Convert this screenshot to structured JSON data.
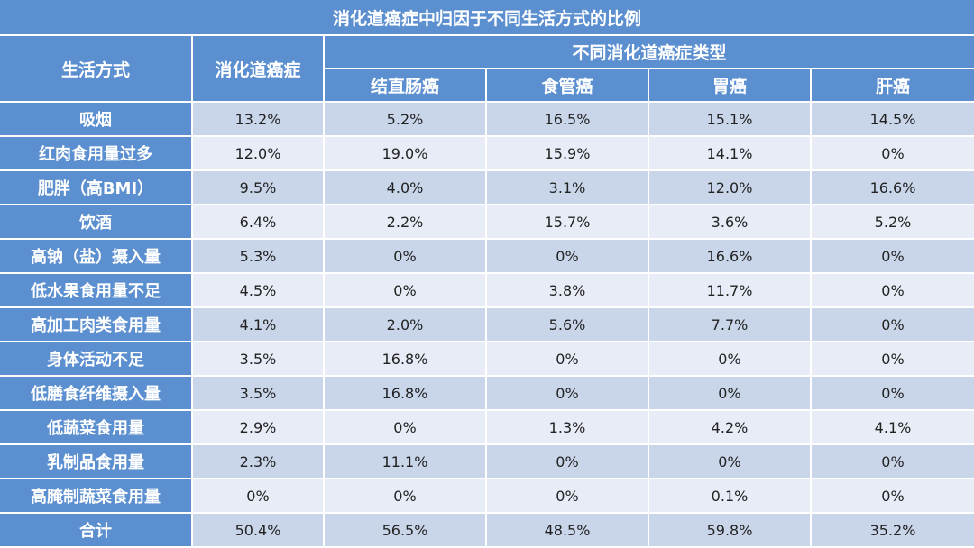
{
  "colors": {
    "header_blue": "#5b8fcf",
    "row_band_dark": "#c9d6ea",
    "row_band_light": "#e7ecf6",
    "header_text": "#ffffff",
    "body_text": "#222222"
  },
  "chart_data": {
    "type": "table",
    "title": "消化道癌症中归因于不同生活方式的比例",
    "row_header_label": "生活方式",
    "total_column_label": "消化道癌症",
    "group_header_label": "不同消化道癌症类型",
    "columns": [
      "消化道癌症",
      "结直肠癌",
      "食管癌",
      "胃癌",
      "肝癌"
    ],
    "rows": [
      {
        "label": "吸烟",
        "values": [
          "13.2%",
          "5.2%",
          "16.5%",
          "15.1%",
          "14.5%"
        ]
      },
      {
        "label": "红肉食用量过多",
        "values": [
          "12.0%",
          "19.0%",
          "15.9%",
          "14.1%",
          "0%"
        ]
      },
      {
        "label": "肥胖（高BMI）",
        "values": [
          "9.5%",
          "4.0%",
          "3.1%",
          "12.0%",
          "16.6%"
        ]
      },
      {
        "label": "饮酒",
        "values": [
          "6.4%",
          "2.2%",
          "15.7%",
          "3.6%",
          "5.2%"
        ]
      },
      {
        "label": "高钠（盐）摄入量",
        "values": [
          "5.3%",
          "0%",
          "0%",
          "16.6%",
          "0%"
        ]
      },
      {
        "label": "低水果食用量不足",
        "values": [
          "4.5%",
          "0%",
          "3.8%",
          "11.7%",
          "0%"
        ]
      },
      {
        "label": "高加工肉类食用量",
        "values": [
          "4.1%",
          "2.0%",
          "5.6%",
          "7.7%",
          "0%"
        ]
      },
      {
        "label": "身体活动不足",
        "values": [
          "3.5%",
          "16.8%",
          "0%",
          "0%",
          "0%"
        ]
      },
      {
        "label": "低膳食纤维摄入量",
        "values": [
          "3.5%",
          "16.8%",
          "0%",
          "0%",
          "0%"
        ]
      },
      {
        "label": "低蔬菜食用量",
        "values": [
          "2.9%",
          "0%",
          "1.3%",
          "4.2%",
          "4.1%"
        ]
      },
      {
        "label": "乳制品食用量",
        "values": [
          "2.3%",
          "11.1%",
          "0%",
          "0%",
          "0%"
        ]
      },
      {
        "label": "高腌制蔬菜食用量",
        "values": [
          "0%",
          "0%",
          "0%",
          "0.1%",
          "0%"
        ]
      },
      {
        "label": "合计",
        "values": [
          "50.4%",
          "56.5%",
          "48.5%",
          "59.8%",
          "35.2%"
        ]
      }
    ]
  }
}
